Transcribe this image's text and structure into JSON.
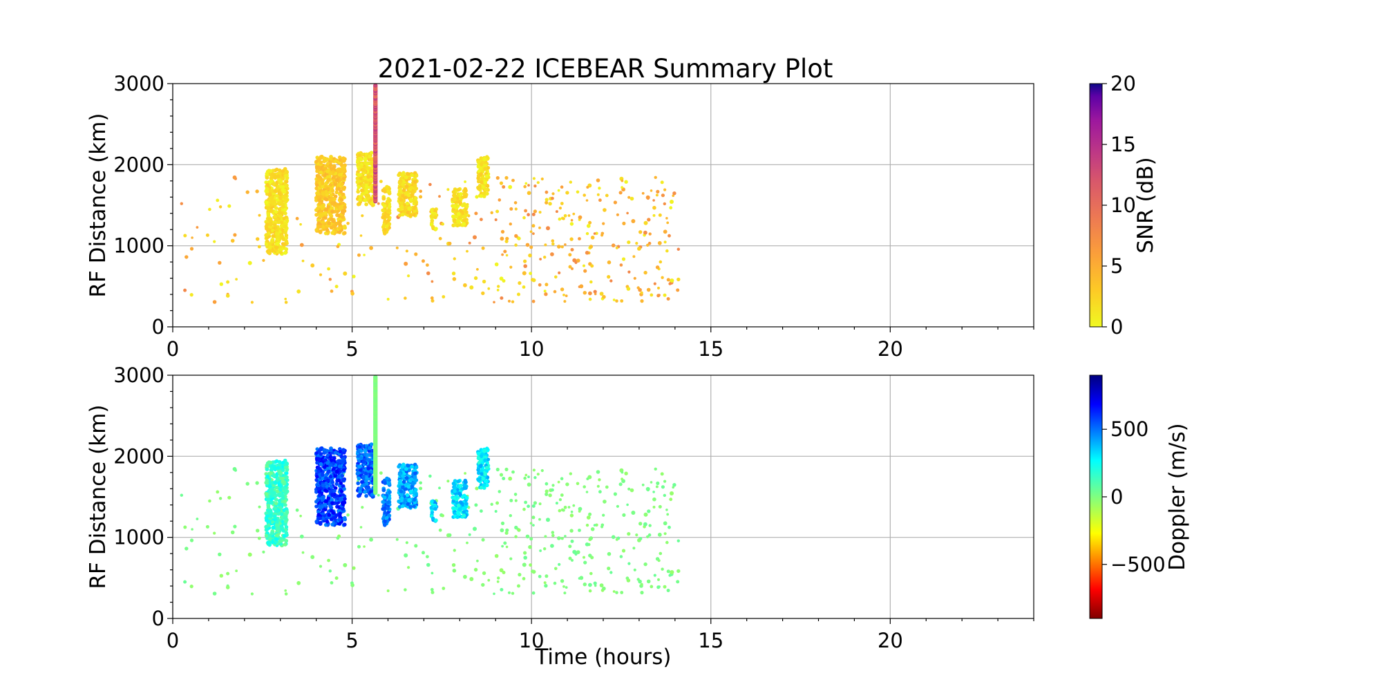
{
  "chart_data": [
    {
      "type": "scatter",
      "title": "2021-02-22 ICEBEAR Summary Plot",
      "xlabel": "",
      "ylabel": "RF Distance (km)",
      "xlim": [
        0,
        24
      ],
      "ylim": [
        0,
        3000
      ],
      "xticks": [
        0,
        5,
        10,
        15,
        20
      ],
      "yticks": [
        0,
        1000,
        2000,
        3000
      ],
      "grid": true,
      "colorbar": {
        "label": "SNR (dB)",
        "colormap": "plasma_r",
        "range": [
          0,
          20
        ],
        "ticks": [
          0,
          5,
          10,
          15,
          20
        ],
        "position": "right"
      },
      "series": [
        {
          "kind": "clusters",
          "color_value_meaning": "SNR (dB)",
          "points": [
            {
              "x0": 2.6,
              "x1": 3.2,
              "y0": 900,
              "y1": 1950,
              "c": 1.5
            },
            {
              "x0": 4.0,
              "x1": 4.8,
              "y0": 1150,
              "y1": 2100,
              "c": 3.0
            },
            {
              "x0": 5.15,
              "x1": 5.6,
              "y0": 1500,
              "y1": 2150,
              "c": 1.5
            },
            {
              "x0": 5.85,
              "x1": 6.05,
              "y0": 1150,
              "y1": 1750,
              "c": 2.0
            },
            {
              "x0": 6.3,
              "x1": 6.8,
              "y0": 1350,
              "y1": 1900,
              "c": 2.0
            },
            {
              "x0": 7.2,
              "x1": 7.35,
              "y0": 1200,
              "y1": 1450,
              "c": 1.5
            },
            {
              "x0": 7.8,
              "x1": 8.2,
              "y0": 1250,
              "y1": 1700,
              "c": 1.5
            },
            {
              "x0": 8.5,
              "x1": 8.8,
              "y0": 1600,
              "y1": 2100,
              "c": 1.5
            }
          ],
          "vertical_streak": {
            "x": 5.65,
            "y0": 1550,
            "y1": 2980,
            "c": 12
          },
          "scattered": {
            "x0": 0.2,
            "x1": 14.1,
            "y0": 300,
            "y1": 1850,
            "density": "sparse, denser 9–14 h",
            "c_range": [
              0,
              8
            ]
          }
        }
      ]
    },
    {
      "type": "scatter",
      "title": "",
      "xlabel": "Time (hours)",
      "ylabel": "RF Distance (km)",
      "xlim": [
        0,
        24
      ],
      "ylim": [
        0,
        3000
      ],
      "xticks": [
        0,
        5,
        10,
        15,
        20
      ],
      "yticks": [
        0,
        1000,
        2000,
        3000
      ],
      "grid": true,
      "colorbar": {
        "label": "Doppler (m/s)",
        "colormap": "jet_r",
        "range": [
          -900,
          900
        ],
        "ticks": [
          -500,
          0,
          500
        ],
        "tick_labels": [
          "−500",
          "0",
          "500"
        ],
        "position": "right"
      },
      "series": [
        {
          "kind": "clusters",
          "color_value_meaning": "Doppler (m/s)",
          "points": [
            {
              "x0": 2.6,
              "x1": 3.2,
              "y0": 900,
              "y1": 1950,
              "c": 150
            },
            {
              "x0": 4.0,
              "x1": 4.8,
              "y0": 1150,
              "y1": 2100,
              "c": 580
            },
            {
              "x0": 5.15,
              "x1": 5.6,
              "y0": 1500,
              "y1": 2150,
              "c": 520
            },
            {
              "x0": 5.85,
              "x1": 6.05,
              "y0": 1150,
              "y1": 1750,
              "c": 480
            },
            {
              "x0": 6.3,
              "x1": 6.8,
              "y0": 1350,
              "y1": 1900,
              "c": 420
            },
            {
              "x0": 7.2,
              "x1": 7.35,
              "y0": 1200,
              "y1": 1450,
              "c": 350
            },
            {
              "x0": 7.8,
              "x1": 8.2,
              "y0": 1250,
              "y1": 1700,
              "c": 320
            },
            {
              "x0": 8.5,
              "x1": 8.8,
              "y0": 1600,
              "y1": 2100,
              "c": 300
            }
          ],
          "vertical_streak": {
            "x": 5.65,
            "y0": 1550,
            "y1": 2980,
            "c": 0
          },
          "scattered": {
            "x0": 0.2,
            "x1": 14.1,
            "y0": 300,
            "y1": 1850,
            "density": "sparse, denser 9–14 h",
            "c_range": [
              -50,
              50
            ]
          }
        }
      ]
    }
  ]
}
